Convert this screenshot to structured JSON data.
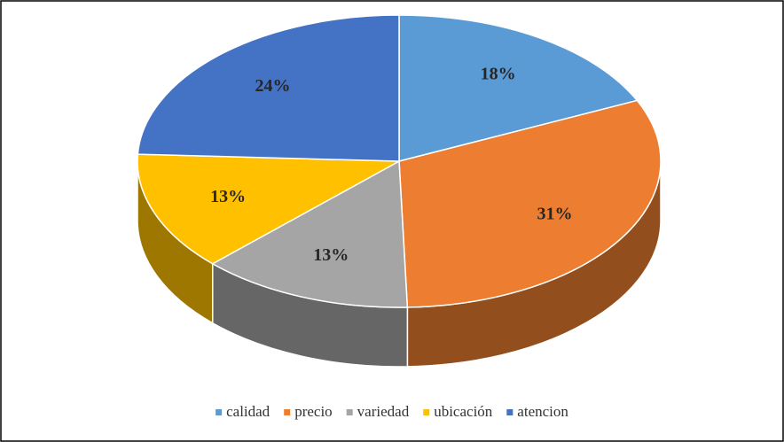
{
  "chart_data": {
    "type": "pie",
    "categories": [
      "calidad",
      "precio",
      "variedad",
      "ubicación",
      "atencion"
    ],
    "values": [
      18,
      31,
      13,
      13,
      24
    ],
    "value_labels": [
      "18%",
      "31%",
      "13%",
      "13%",
      "24%"
    ],
    "colors": [
      "#5b9bd5",
      "#ed7d31",
      "#a5a5a5",
      "#ffc000",
      "#4472c4"
    ],
    "legend": "bottom"
  }
}
